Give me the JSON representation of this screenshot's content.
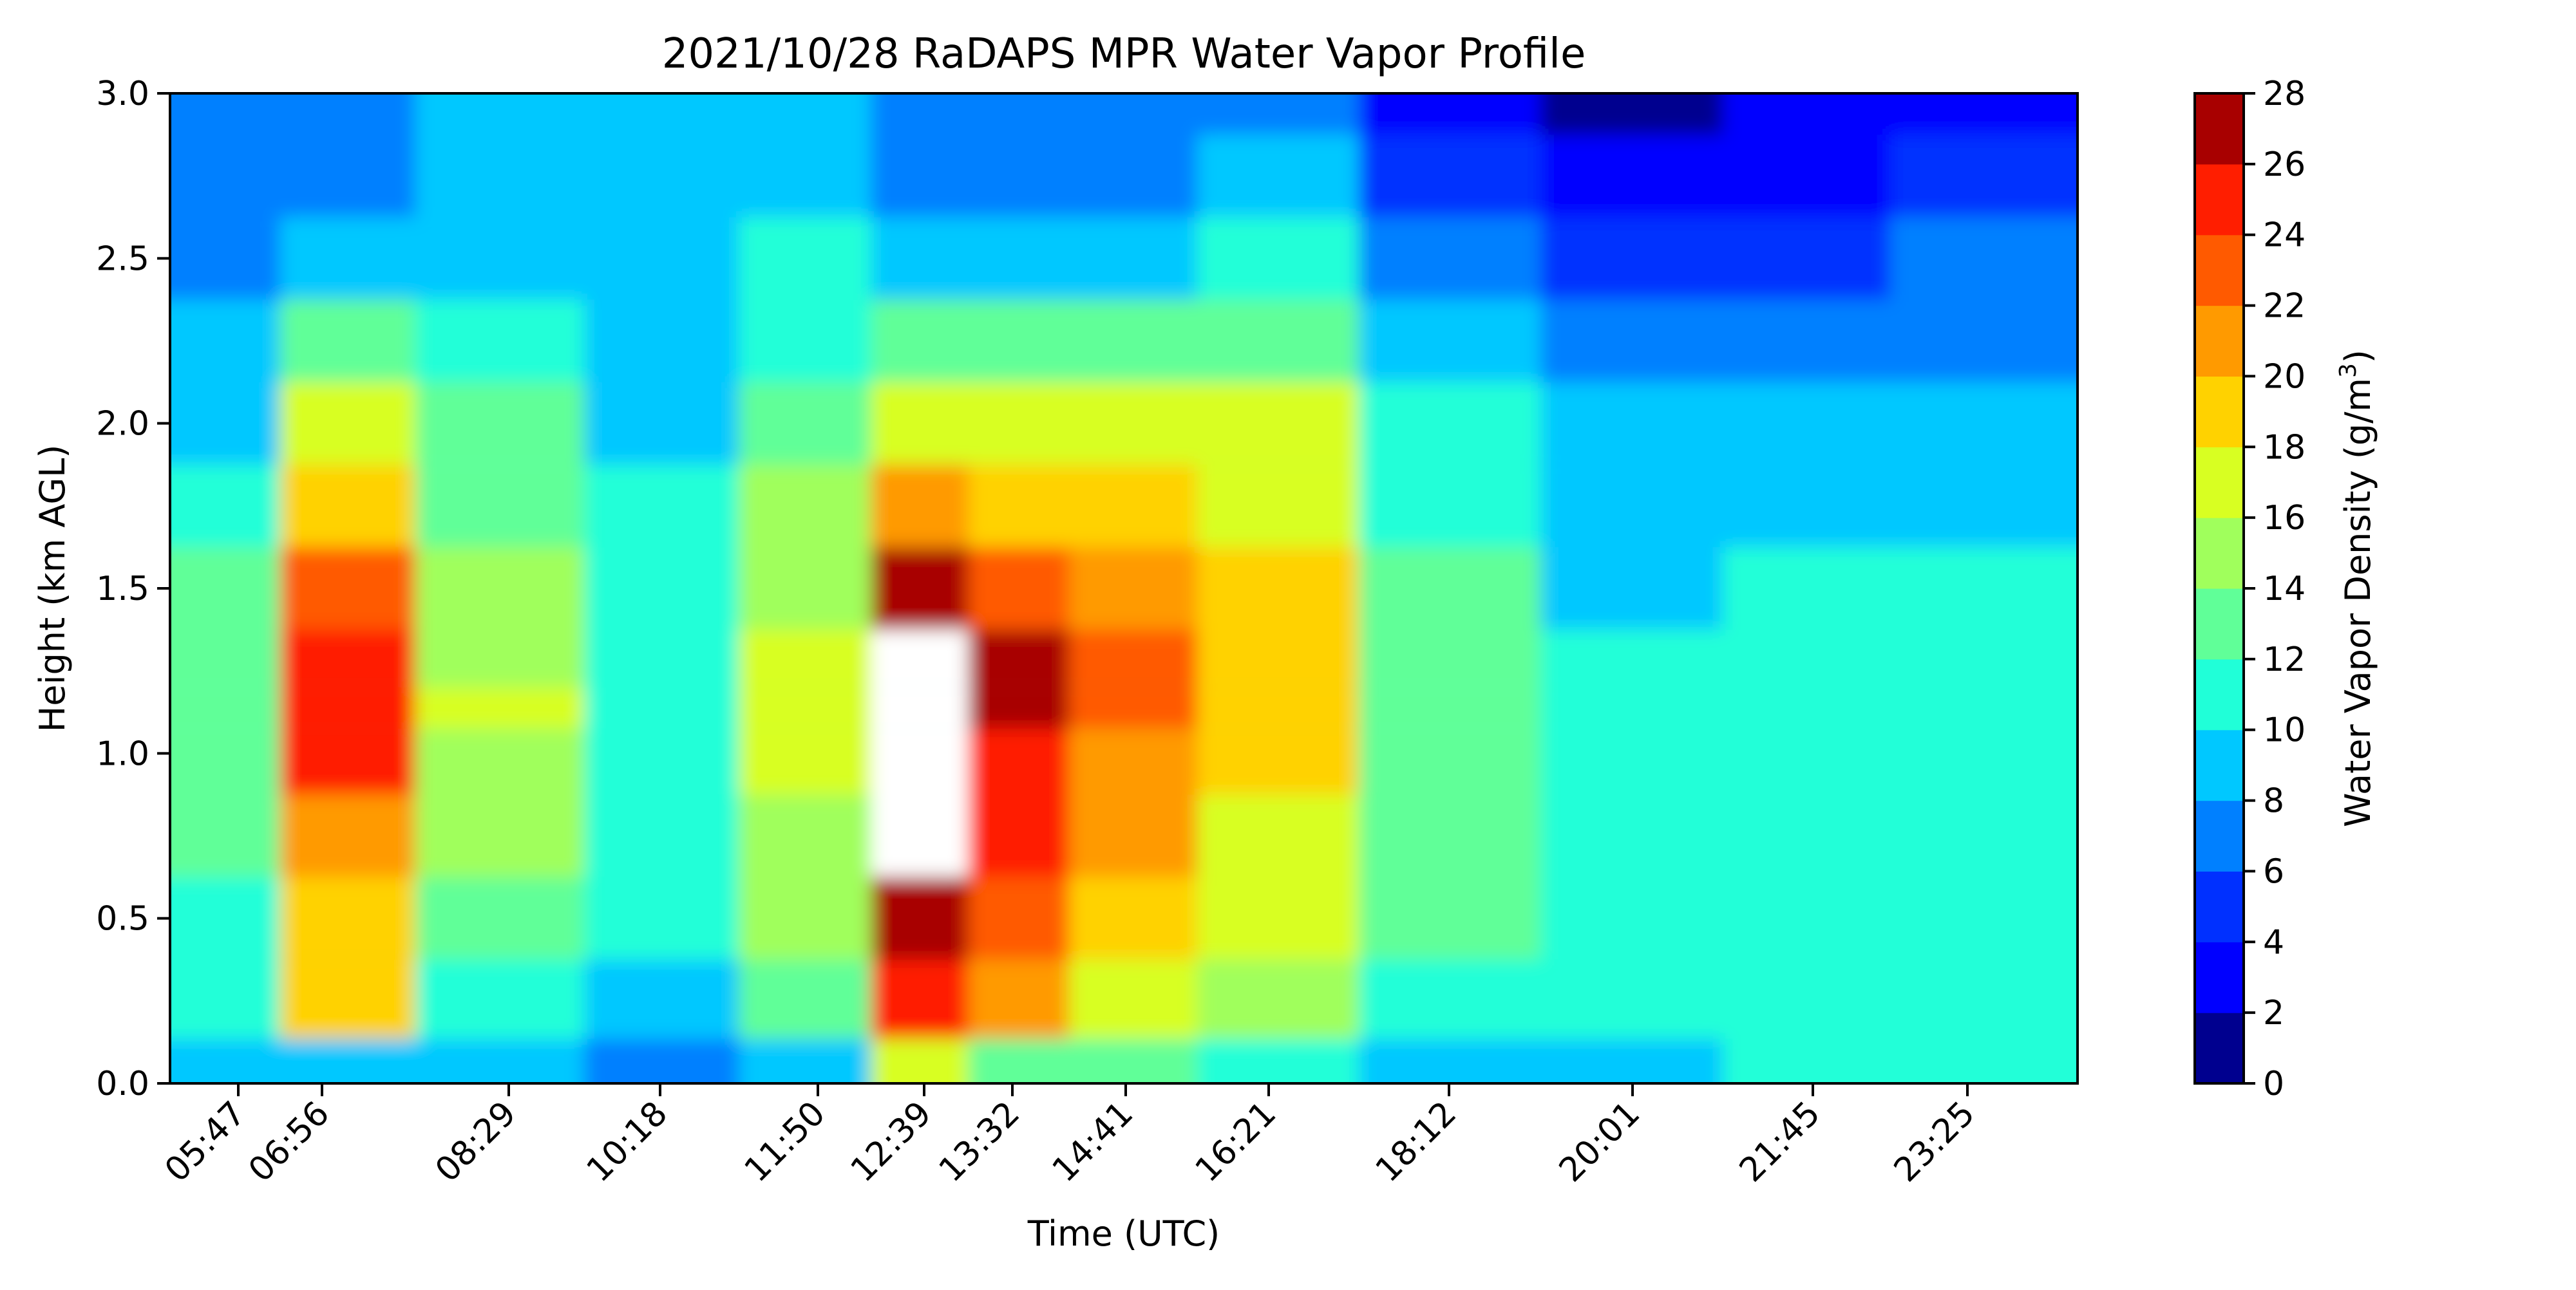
{
  "chart_data": {
    "type": "heatmap",
    "subtype": "filled-contour",
    "title": "2021/10/28 RaDAPS MPR Water Vapor Profile",
    "xlabel": "Time (UTC)",
    "ylabel": "Height (km AGL)",
    "x_tick_labels": [
      "05:47",
      "06:56",
      "08:29",
      "10:18",
      "11:50",
      "12:39",
      "13:32",
      "14:41",
      "16:21",
      "18:12",
      "20:01",
      "21:45",
      "23:25"
    ],
    "y_ticks": [
      0.0,
      0.5,
      1.0,
      1.5,
      2.0,
      2.5,
      3.0
    ],
    "y_tick_labels": [
      "0.0",
      "0.5",
      "1.0",
      "1.5",
      "2.0",
      "2.5",
      "3.0"
    ],
    "ylim": [
      0.0,
      3.0
    ],
    "colorbar": {
      "label": "Water Vapor Density (g/m",
      "label_sup": "3",
      "label_suffix": ")",
      "levels": [
        0,
        2,
        4,
        6,
        8,
        10,
        12,
        14,
        16,
        18,
        20,
        22,
        24,
        26,
        28
      ],
      "tick_labels": [
        "0",
        "2",
        "4",
        "6",
        "8",
        "10",
        "12",
        "14",
        "16",
        "18",
        "20",
        "22",
        "24",
        "26",
        "28"
      ],
      "colors": [
        "#00008f",
        "#0000ff",
        "#0030ff",
        "#0080ff",
        "#00c8ff",
        "#20ffd8",
        "#60ff98",
        "#a0ff5c",
        "#d8ff22",
        "#ffd200",
        "#ff9a00",
        "#ff5a00",
        "#ff1e00",
        "#a80000"
      ],
      "over_color": "#ffffff"
    },
    "profile_samples": {
      "heights_km": [
        0.02,
        0.25,
        0.5,
        0.75,
        1.0,
        1.15,
        1.25,
        1.5,
        1.75,
        2.0,
        2.25,
        2.5,
        2.75,
        3.0
      ],
      "columns": [
        {
          "time": "05:47",
          "values": [
            8,
            11,
            11,
            12,
            13,
            13,
            13,
            12,
            10,
            9,
            8,
            7,
            6,
            6
          ]
        },
        {
          "time": "06:56",
          "values": [
            9,
            18,
            19,
            21,
            24,
            25,
            25,
            22,
            18,
            16,
            13,
            9,
            7,
            6
          ]
        },
        {
          "time": "08:29",
          "values": [
            8,
            11,
            13,
            14,
            15,
            16,
            15,
            14,
            13,
            12,
            10,
            9,
            8,
            8
          ]
        },
        {
          "time": "10:18",
          "values": [
            7,
            9,
            10,
            11,
            11,
            11,
            11,
            11,
            10,
            9,
            9,
            8,
            8,
            8
          ]
        },
        {
          "time": "11:50",
          "values": [
            9,
            13,
            14,
            15,
            16,
            16,
            16,
            15,
            14,
            13,
            11,
            10,
            9,
            8
          ]
        },
        {
          "time": "12:39",
          "values": [
            16,
            24,
            27,
            28,
            28,
            29,
            29,
            26,
            20,
            17,
            13,
            9,
            7,
            6
          ]
        },
        {
          "time": "13:32",
          "values": [
            13,
            20,
            22,
            24,
            25,
            26,
            26,
            23,
            19,
            17,
            13,
            9,
            7,
            6
          ]
        },
        {
          "time": "14:41",
          "values": [
            12,
            17,
            19,
            20,
            21,
            22,
            22,
            20,
            18,
            16,
            13,
            9,
            7,
            6
          ]
        },
        {
          "time": "16:21",
          "values": [
            10,
            14,
            16,
            17,
            18,
            18,
            18,
            18,
            17,
            16,
            13,
            10,
            8,
            7
          ]
        },
        {
          "time": "18:12",
          "values": [
            9,
            11,
            12,
            12,
            12,
            12,
            12,
            12,
            11,
            10,
            8,
            6,
            4,
            3
          ]
        },
        {
          "time": "20:01",
          "values": [
            9,
            10,
            10,
            10,
            10,
            10,
            10,
            9,
            9,
            8,
            7,
            4,
            2,
            1
          ]
        },
        {
          "time": "21:45",
          "values": [
            10,
            11,
            11,
            11,
            11,
            11,
            11,
            10,
            9,
            8,
            7,
            4,
            2,
            2
          ]
        },
        {
          "time": "23:25",
          "values": [
            10,
            11,
            11,
            11,
            11,
            11,
            11,
            10,
            9,
            8,
            7,
            6,
            4,
            3
          ]
        }
      ]
    }
  }
}
